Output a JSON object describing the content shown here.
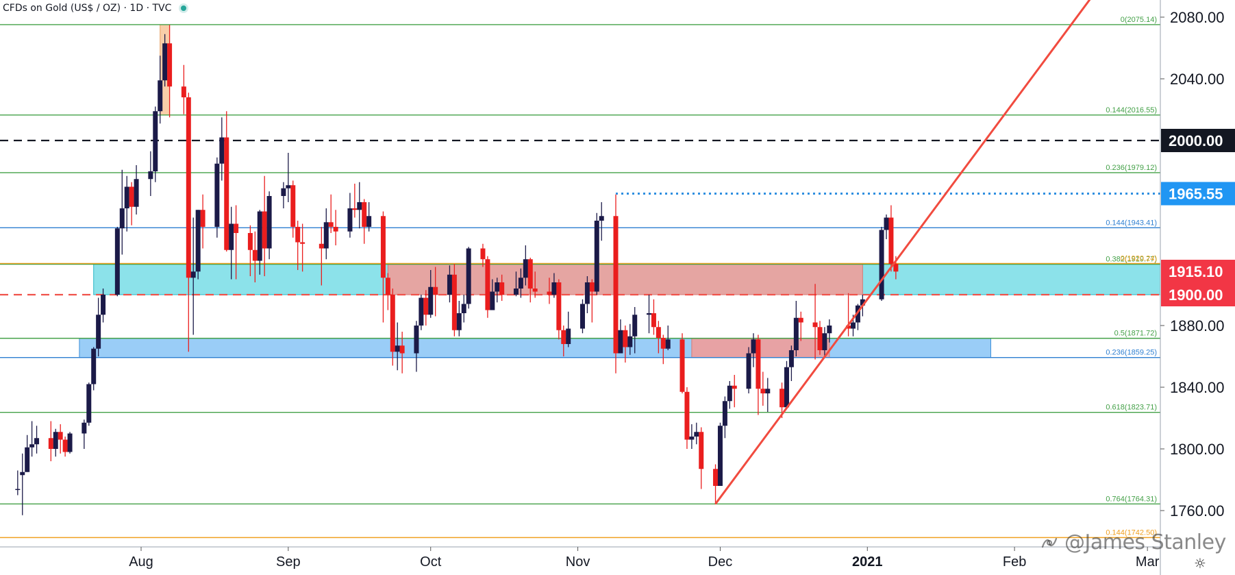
{
  "header": {
    "title": "CFDs on Gold (US$ / OZ) · 1D · TVC"
  },
  "watermark": {
    "text": "@James Stanley"
  },
  "colors": {
    "bull": "#1b1a48",
    "bear": "#ea1e1e",
    "green_line": "#43a047",
    "blue_line": "#2e7fd1",
    "orange_line": "#f0a020",
    "trendline": "#f14b3f",
    "zone_cyan": "#7fdfe8",
    "zone_blue": "#8fc8f6",
    "zone_red": "#f59a95",
    "zone_orange": "#f8c9a0"
  },
  "chart_data": {
    "type": "candlestick",
    "title": "CFDs on Gold (US$ / OZ) · 1D · TVC",
    "y_axis": {
      "range": [
        1732,
        2092
      ],
      "ticks": [
        "1760.00",
        "1800.00",
        "1840.00",
        "1880.00",
        "2040.00",
        "2080.00"
      ],
      "side": "right"
    },
    "x_axis": {
      "ticks": [
        {
          "label": "Aug",
          "date": "2020-08-01"
        },
        {
          "label": "Sep",
          "date": "2020-09-01"
        },
        {
          "label": "Oct",
          "date": "2020-10-01"
        },
        {
          "label": "Nov",
          "date": "2020-11-01"
        },
        {
          "label": "Dec",
          "date": "2020-12-01"
        },
        {
          "label": "2021",
          "date": "2021-01-01",
          "bold": true
        },
        {
          "label": "Feb",
          "date": "2021-02-01"
        },
        {
          "label": "Mar",
          "date": "2021-03-01"
        }
      ],
      "range": [
        "2020-07-04",
        "2021-03-11"
      ]
    },
    "price_badges": [
      {
        "label": "2000.00",
        "value": 2000.0,
        "style": "black"
      },
      {
        "label": "1965.55",
        "value": 1965.55,
        "style": "blue"
      },
      {
        "label": "1915.10",
        "value": 1915.1,
        "style": "red"
      },
      {
        "label": "1900.00",
        "value": 1900.0,
        "style": "red"
      }
    ],
    "fib_levels": [
      {
        "label": "0(2075.14)",
        "value": 2075.14,
        "color": "green"
      },
      {
        "label": "0.144(2016.55)",
        "value": 2016.55,
        "color": "green"
      },
      {
        "label": "0.236(1979.12)",
        "value": 1979.12,
        "color": "green"
      },
      {
        "label": "0.144(1943.41)",
        "value": 1943.41,
        "color": "blue"
      },
      {
        "label": "0.382(1919.77)",
        "value": 1919.77,
        "color": "green"
      },
      {
        "label": "0(1920.24)",
        "value": 1920.24,
        "color": "orange"
      },
      {
        "label": "0.5(1871.72)",
        "value": 1871.72,
        "color": "green"
      },
      {
        "label": "0.236(1859.25)",
        "value": 1859.25,
        "color": "blue"
      },
      {
        "label": "0.618(1823.71)",
        "value": 1823.71,
        "color": "green"
      },
      {
        "label": "0.764(1764.31)",
        "value": 1764.31,
        "color": "green"
      },
      {
        "label": "0.144(1742.50)",
        "value": 1742.5,
        "color": "orange"
      }
    ],
    "horizontal_lines": [
      {
        "value": 2000.0,
        "style": "dashed",
        "color": "black"
      },
      {
        "value": 1900.0,
        "style": "dashed",
        "color": "red"
      },
      {
        "value": 1965.55,
        "style": "dotted",
        "color": "blue",
        "start_date": "2020-11-09"
      }
    ],
    "zones": [
      {
        "color": "zone_cyan",
        "from": "2020-07-22",
        "to": "2021-03-11",
        "low": 1900,
        "high": 1920.24
      },
      {
        "color": "zone_red",
        "from": "2020-09-22",
        "to": "2020-12-31",
        "low": 1900,
        "high": 1920.24
      },
      {
        "color": "zone_blue",
        "from": "2020-07-19",
        "to": "2021-01-27",
        "low": 1859.25,
        "high": 1871.72
      },
      {
        "color": "zone_red",
        "from": "2020-11-25",
        "to": "2020-12-24",
        "low": 1859.25,
        "high": 1871.72
      },
      {
        "color": "zone_orange",
        "from": "2020-08-05",
        "to": "2020-08-07",
        "low": 2016.55,
        "high": 2075.14
      }
    ],
    "trendline": {
      "from": {
        "date": "2020-11-30",
        "value": 1764.31
      },
      "to": {
        "date": "2021-02-17",
        "value": 2092
      }
    },
    "candles": [
      {
        "d": "2020-07-06",
        "o": 1774,
        "h": 1786,
        "l": 1770,
        "c": 1774
      },
      {
        "d": "2020-07-07",
        "o": 1783,
        "h": 1797,
        "l": 1757,
        "c": 1785
      },
      {
        "d": "2020-07-08",
        "o": 1785,
        "h": 1809,
        "l": 1785,
        "c": 1801
      },
      {
        "d": "2020-07-09",
        "o": 1801,
        "h": 1818,
        "l": 1795,
        "c": 1803
      },
      {
        "d": "2020-07-10",
        "o": 1803,
        "h": 1815,
        "l": 1797,
        "c": 1807
      },
      {
        "d": "2020-07-13",
        "o": 1807,
        "h": 1818,
        "l": 1792,
        "c": 1800
      },
      {
        "d": "2020-07-14",
        "o": 1800,
        "h": 1813,
        "l": 1795,
        "c": 1811
      },
      {
        "d": "2020-07-15",
        "o": 1811,
        "h": 1816,
        "l": 1797,
        "c": 1806
      },
      {
        "d": "2020-07-16",
        "o": 1806,
        "h": 1808,
        "l": 1795,
        "c": 1798
      },
      {
        "d": "2020-07-17",
        "o": 1798,
        "h": 1811,
        "l": 1797,
        "c": 1810
      },
      {
        "d": "2020-07-20",
        "o": 1810,
        "h": 1819,
        "l": 1800,
        "c": 1817
      },
      {
        "d": "2020-07-21",
        "o": 1817,
        "h": 1843,
        "l": 1815,
        "c": 1842
      },
      {
        "d": "2020-07-22",
        "o": 1842,
        "h": 1866,
        "l": 1838,
        "c": 1865
      },
      {
        "d": "2020-07-23",
        "o": 1865,
        "h": 1898,
        "l": 1860,
        "c": 1887
      },
      {
        "d": "2020-07-24",
        "o": 1887,
        "h": 1904,
        "l": 1882,
        "c": 1900
      },
      {
        "d": "2020-07-27",
        "o": 1900,
        "h": 1944,
        "l": 1899,
        "c": 1943
      },
      {
        "d": "2020-07-28",
        "o": 1943,
        "h": 1981,
        "l": 1926,
        "c": 1956
      },
      {
        "d": "2020-07-29",
        "o": 1956,
        "h": 1977,
        "l": 1941,
        "c": 1970
      },
      {
        "d": "2020-07-30",
        "o": 1970,
        "h": 1973,
        "l": 1945,
        "c": 1957
      },
      {
        "d": "2020-07-31",
        "o": 1957,
        "h": 1984,
        "l": 1952,
        "c": 1975
      },
      {
        "d": "2020-08-03",
        "o": 1975,
        "h": 1993,
        "l": 1964,
        "c": 1980
      },
      {
        "d": "2020-08-04",
        "o": 1980,
        "h": 2022,
        "l": 1973,
        "c": 2019
      },
      {
        "d": "2020-08-05",
        "o": 2019,
        "h": 2055,
        "l": 2011,
        "c": 2039
      },
      {
        "d": "2020-08-06",
        "o": 2039,
        "h": 2069,
        "l": 2035,
        "c": 2063
      },
      {
        "d": "2020-08-07",
        "o": 2063,
        "h": 2075,
        "l": 2015,
        "c": 2035
      },
      {
        "d": "2020-08-10",
        "o": 2035,
        "h": 2049,
        "l": 2017,
        "c": 2028
      },
      {
        "d": "2020-08-11",
        "o": 2028,
        "h": 2031,
        "l": 1863,
        "c": 1911
      },
      {
        "d": "2020-08-12",
        "o": 1911,
        "h": 1950,
        "l": 1874,
        "c": 1915
      },
      {
        "d": "2020-08-13",
        "o": 1915,
        "h": 1955,
        "l": 1910,
        "c": 1955
      },
      {
        "d": "2020-08-14",
        "o": 1955,
        "h": 1965,
        "l": 1930,
        "c": 1944
      },
      {
        "d": "2020-08-17",
        "o": 1944,
        "h": 1989,
        "l": 1937,
        "c": 1985
      },
      {
        "d": "2020-08-18",
        "o": 1985,
        "h": 2015,
        "l": 1974,
        "c": 2002
      },
      {
        "d": "2020-08-19",
        "o": 2002,
        "h": 2019,
        "l": 1928,
        "c": 1929
      },
      {
        "d": "2020-08-20",
        "o": 1929,
        "h": 1957,
        "l": 1910,
        "c": 1946
      },
      {
        "d": "2020-08-21",
        "o": 1946,
        "h": 1958,
        "l": 1910,
        "c": 1940
      },
      {
        "d": "2020-08-24",
        "o": 1940,
        "h": 1945,
        "l": 1912,
        "c": 1929
      },
      {
        "d": "2020-08-25",
        "o": 1929,
        "h": 1941,
        "l": 1908,
        "c": 1922
      },
      {
        "d": "2020-08-26",
        "o": 1922,
        "h": 1955,
        "l": 1913,
        "c": 1954
      },
      {
        "d": "2020-08-27",
        "o": 1954,
        "h": 1977,
        "l": 1912,
        "c": 1930
      },
      {
        "d": "2020-08-28",
        "o": 1930,
        "h": 1967,
        "l": 1923,
        "c": 1964
      },
      {
        "d": "2020-08-31",
        "o": 1964,
        "h": 1973,
        "l": 1956,
        "c": 1969
      },
      {
        "d": "2020-09-01",
        "o": 1969,
        "h": 1992,
        "l": 1960,
        "c": 1971
      },
      {
        "d": "2020-09-02",
        "o": 1971,
        "h": 1974,
        "l": 1937,
        "c": 1944
      },
      {
        "d": "2020-09-03",
        "o": 1944,
        "h": 1948,
        "l": 1916,
        "c": 1934
      },
      {
        "d": "2020-09-04",
        "o": 1934,
        "h": 1946,
        "l": 1915,
        "c": 1933
      },
      {
        "d": "2020-09-08",
        "o": 1933,
        "h": 1944,
        "l": 1906,
        "c": 1930
      },
      {
        "d": "2020-09-09",
        "o": 1930,
        "h": 1956,
        "l": 1923,
        "c": 1947
      },
      {
        "d": "2020-09-10",
        "o": 1947,
        "h": 1965,
        "l": 1940,
        "c": 1944
      },
      {
        "d": "2020-09-11",
        "o": 1944,
        "h": 1955,
        "l": 1932,
        "c": 1941
      },
      {
        "d": "2020-09-14",
        "o": 1941,
        "h": 1966,
        "l": 1937,
        "c": 1956
      },
      {
        "d": "2020-09-15",
        "o": 1956,
        "h": 1972,
        "l": 1950,
        "c": 1955
      },
      {
        "d": "2020-09-16",
        "o": 1955,
        "h": 1973,
        "l": 1943,
        "c": 1960
      },
      {
        "d": "2020-09-17",
        "o": 1960,
        "h": 1962,
        "l": 1933,
        "c": 1944
      },
      {
        "d": "2020-09-18",
        "o": 1944,
        "h": 1960,
        "l": 1941,
        "c": 1951
      },
      {
        "d": "2020-09-21",
        "o": 1951,
        "h": 1954,
        "l": 1882,
        "c": 1911
      },
      {
        "d": "2020-09-22",
        "o": 1911,
        "h": 1914,
        "l": 1890,
        "c": 1900
      },
      {
        "d": "2020-09-23",
        "o": 1900,
        "h": 1904,
        "l": 1854,
        "c": 1863
      },
      {
        "d": "2020-09-24",
        "o": 1863,
        "h": 1882,
        "l": 1851,
        "c": 1867
      },
      {
        "d": "2020-09-25",
        "o": 1867,
        "h": 1876,
        "l": 1849,
        "c": 1862
      },
      {
        "d": "2020-09-28",
        "o": 1862,
        "h": 1883,
        "l": 1850,
        "c": 1880
      },
      {
        "d": "2020-09-29",
        "o": 1880,
        "h": 1900,
        "l": 1877,
        "c": 1898
      },
      {
        "d": "2020-09-30",
        "o": 1898,
        "h": 1903,
        "l": 1880,
        "c": 1887
      },
      {
        "d": "2020-10-01",
        "o": 1887,
        "h": 1916,
        "l": 1885,
        "c": 1905
      },
      {
        "d": "2020-10-02",
        "o": 1905,
        "h": 1918,
        "l": 1886,
        "c": 1900
      },
      {
        "d": "2020-10-05",
        "o": 1900,
        "h": 1919,
        "l": 1895,
        "c": 1913
      },
      {
        "d": "2020-10-06",
        "o": 1913,
        "h": 1920,
        "l": 1873,
        "c": 1877
      },
      {
        "d": "2020-10-07",
        "o": 1877,
        "h": 1896,
        "l": 1873,
        "c": 1888
      },
      {
        "d": "2020-10-08",
        "o": 1888,
        "h": 1900,
        "l": 1882,
        "c": 1894
      },
      {
        "d": "2020-10-09",
        "o": 1894,
        "h": 1931,
        "l": 1891,
        "c": 1930
      },
      {
        "d": "2020-10-12",
        "o": 1930,
        "h": 1933,
        "l": 1918,
        "c": 1923
      },
      {
        "d": "2020-10-13",
        "o": 1923,
        "h": 1925,
        "l": 1885,
        "c": 1890
      },
      {
        "d": "2020-10-14",
        "o": 1890,
        "h": 1910,
        "l": 1890,
        "c": 1902
      },
      {
        "d": "2020-10-15",
        "o": 1902,
        "h": 1911,
        "l": 1895,
        "c": 1908
      },
      {
        "d": "2020-10-16",
        "o": 1908,
        "h": 1913,
        "l": 1896,
        "c": 1900
      },
      {
        "d": "2020-10-19",
        "o": 1900,
        "h": 1915,
        "l": 1899,
        "c": 1904
      },
      {
        "d": "2020-10-20",
        "o": 1904,
        "h": 1917,
        "l": 1898,
        "c": 1911
      },
      {
        "d": "2020-10-21",
        "o": 1911,
        "h": 1932,
        "l": 1906,
        "c": 1923
      },
      {
        "d": "2020-10-22",
        "o": 1923,
        "h": 1924,
        "l": 1895,
        "c": 1904
      },
      {
        "d": "2020-10-23",
        "o": 1904,
        "h": 1915,
        "l": 1898,
        "c": 1902
      },
      {
        "d": "2020-10-26",
        "o": 1902,
        "h": 1911,
        "l": 1894,
        "c": 1900
      },
      {
        "d": "2020-10-27",
        "o": 1900,
        "h": 1914,
        "l": 1898,
        "c": 1908
      },
      {
        "d": "2020-10-28",
        "o": 1908,
        "h": 1910,
        "l": 1871,
        "c": 1877
      },
      {
        "d": "2020-10-29",
        "o": 1877,
        "h": 1880,
        "l": 1860,
        "c": 1868
      },
      {
        "d": "2020-10-30",
        "o": 1868,
        "h": 1889,
        "l": 1866,
        "c": 1878
      },
      {
        "d": "2020-11-02",
        "o": 1878,
        "h": 1897,
        "l": 1875,
        "c": 1894
      },
      {
        "d": "2020-11-03",
        "o": 1894,
        "h": 1912,
        "l": 1888,
        "c": 1908
      },
      {
        "d": "2020-11-04",
        "o": 1908,
        "h": 1910,
        "l": 1882,
        "c": 1902
      },
      {
        "d": "2020-11-05",
        "o": 1902,
        "h": 1953,
        "l": 1900,
        "c": 1948
      },
      {
        "d": "2020-11-06",
        "o": 1948,
        "h": 1960,
        "l": 1935,
        "c": 1951
      },
      {
        "d": "2020-11-09",
        "o": 1951,
        "h": 1965,
        "l": 1849,
        "c": 1862
      },
      {
        "d": "2020-11-10",
        "o": 1862,
        "h": 1884,
        "l": 1863,
        "c": 1877
      },
      {
        "d": "2020-11-11",
        "o": 1877,
        "h": 1880,
        "l": 1856,
        "c": 1866
      },
      {
        "d": "2020-11-12",
        "o": 1866,
        "h": 1881,
        "l": 1861,
        "c": 1873
      },
      {
        "d": "2020-11-13",
        "o": 1873,
        "h": 1892,
        "l": 1862,
        "c": 1887
      },
      {
        "d": "2020-11-16",
        "o": 1887,
        "h": 1900,
        "l": 1875,
        "c": 1888
      },
      {
        "d": "2020-11-17",
        "o": 1888,
        "h": 1897,
        "l": 1874,
        "c": 1879
      },
      {
        "d": "2020-11-18",
        "o": 1879,
        "h": 1883,
        "l": 1862,
        "c": 1872
      },
      {
        "d": "2020-11-19",
        "o": 1872,
        "h": 1874,
        "l": 1855,
        "c": 1865
      },
      {
        "d": "2020-11-20",
        "o": 1865,
        "h": 1880,
        "l": 1864,
        "c": 1871
      },
      {
        "d": "2020-11-23",
        "o": 1871,
        "h": 1875,
        "l": 1836,
        "c": 1837
      },
      {
        "d": "2020-11-24",
        "o": 1837,
        "h": 1840,
        "l": 1800,
        "c": 1806
      },
      {
        "d": "2020-11-25",
        "o": 1806,
        "h": 1816,
        "l": 1800,
        "c": 1808
      },
      {
        "d": "2020-11-26",
        "o": 1808,
        "h": 1817,
        "l": 1803,
        "c": 1811
      },
      {
        "d": "2020-11-27",
        "o": 1811,
        "h": 1814,
        "l": 1774,
        "c": 1787
      },
      {
        "d": "2020-11-30",
        "o": 1787,
        "h": 1790,
        "l": 1764,
        "c": 1776
      },
      {
        "d": "2020-12-01",
        "o": 1776,
        "h": 1817,
        "l": 1776,
        "c": 1815
      },
      {
        "d": "2020-12-02",
        "o": 1815,
        "h": 1834,
        "l": 1807,
        "c": 1831
      },
      {
        "d": "2020-12-03",
        "o": 1831,
        "h": 1844,
        "l": 1826,
        "c": 1841
      },
      {
        "d": "2020-12-04",
        "o": 1841,
        "h": 1848,
        "l": 1827,
        "c": 1839
      },
      {
        "d": "2020-12-07",
        "o": 1839,
        "h": 1866,
        "l": 1836,
        "c": 1862
      },
      {
        "d": "2020-12-08",
        "o": 1862,
        "h": 1875,
        "l": 1853,
        "c": 1871
      },
      {
        "d": "2020-12-09",
        "o": 1871,
        "h": 1874,
        "l": 1822,
        "c": 1839
      },
      {
        "d": "2020-12-10",
        "o": 1839,
        "h": 1850,
        "l": 1828,
        "c": 1836
      },
      {
        "d": "2020-12-11",
        "o": 1836,
        "h": 1846,
        "l": 1824,
        "c": 1839
      },
      {
        "d": "2020-12-14",
        "o": 1839,
        "h": 1843,
        "l": 1820,
        "c": 1827
      },
      {
        "d": "2020-12-15",
        "o": 1827,
        "h": 1857,
        "l": 1826,
        "c": 1853
      },
      {
        "d": "2020-12-16",
        "o": 1853,
        "h": 1867,
        "l": 1844,
        "c": 1864
      },
      {
        "d": "2020-12-17",
        "o": 1864,
        "h": 1896,
        "l": 1860,
        "c": 1885
      },
      {
        "d": "2020-12-18",
        "o": 1885,
        "h": 1889,
        "l": 1870,
        "c": 1882
      },
      {
        "d": "2020-12-21",
        "o": 1882,
        "h": 1907,
        "l": 1858,
        "c": 1879
      },
      {
        "d": "2020-12-22",
        "o": 1879,
        "h": 1883,
        "l": 1861,
        "c": 1864
      },
      {
        "d": "2020-12-23",
        "o": 1864,
        "h": 1879,
        "l": 1859,
        "c": 1875
      },
      {
        "d": "2020-12-24",
        "o": 1875,
        "h": 1884,
        "l": 1869,
        "c": 1880
      },
      {
        "d": "2020-12-28",
        "o": 1880,
        "h": 1901,
        "l": 1873,
        "c": 1878
      },
      {
        "d": "2020-12-29",
        "o": 1878,
        "h": 1887,
        "l": 1873,
        "c": 1882
      },
      {
        "d": "2020-12-30",
        "o": 1882,
        "h": 1894,
        "l": 1877,
        "c": 1893
      },
      {
        "d": "2020-12-31",
        "o": 1893,
        "h": 1900,
        "l": 1886,
        "c": 1897
      },
      {
        "d": "2021-01-04",
        "o": 1897,
        "h": 1944,
        "l": 1896,
        "c": 1942
      },
      {
        "d": "2021-01-05",
        "o": 1942,
        "h": 1952,
        "l": 1936,
        "c": 1950
      },
      {
        "d": "2021-01-06",
        "o": 1950,
        "h": 1958,
        "l": 1915,
        "c": 1920
      },
      {
        "d": "2021-01-07",
        "o": 1920,
        "h": 1925,
        "l": 1910,
        "c": 1915
      }
    ]
  }
}
